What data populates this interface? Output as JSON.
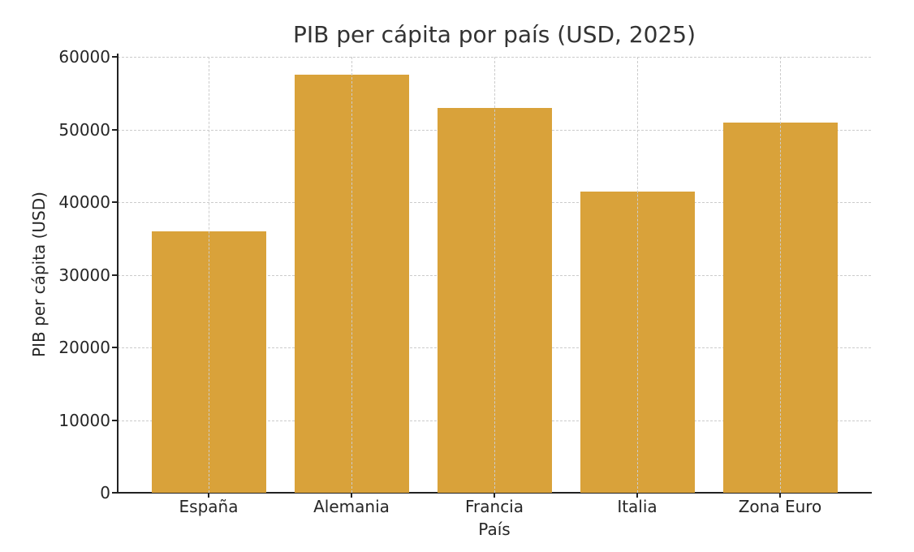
{
  "chart_data": {
    "type": "bar",
    "title": "PIB per cápita por país (USD, 2025)",
    "xlabel": "País",
    "ylabel": "PIB per cápita (USD)",
    "categories": [
      "España",
      "Alemania",
      "Francia",
      "Italia",
      "Zona Euro"
    ],
    "values": [
      36000,
      57500,
      53000,
      41500,
      51000
    ],
    "ylim": [
      0,
      60000
    ],
    "yticks": [
      "0",
      "10000",
      "20000",
      "30000",
      "40000",
      "50000",
      "60000"
    ],
    "grid": true,
    "bar_color": "#d9a23a",
    "legend": null
  }
}
